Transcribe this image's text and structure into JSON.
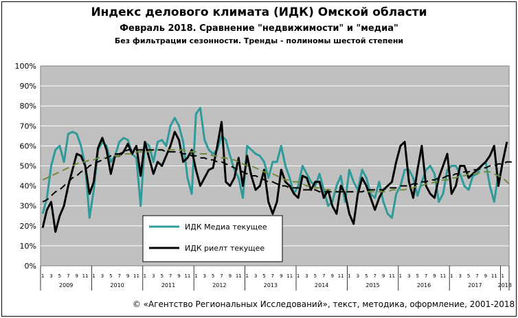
{
  "chart_data": {
    "type": "line",
    "title": "Индекс делового климата (ИДК) Омской области",
    "subtitle": "Февраль 2018. Сравнение \"недвижимости\"  и \"медиа\"",
    "note": "Без фильтрации  сезонности. Тренды  - полиномы  шестой степени",
    "credit": "© «Агентство Региональных Исследований», текст, методика, оформление, 2001-2018",
    "ylim": [
      0,
      100
    ],
    "y_ticks": [
      "0%",
      "10%",
      "20%",
      "30%",
      "40%",
      "50%",
      "60%",
      "70%",
      "80%",
      "90%",
      "100%"
    ],
    "grid": true,
    "plot_background": "#c0c0c0",
    "month_ticks": [
      "1",
      "3",
      "5",
      "7",
      "9",
      "11"
    ],
    "years": [
      "2009",
      "2010",
      "2011",
      "2012",
      "2013",
      "2014",
      "2015",
      "2016",
      "2017",
      "2018"
    ],
    "legend_position": "inside-bottom-left",
    "series": [
      {
        "name": "ИДК Медиа текущее",
        "color": "#2e9a9a",
        "values": [
          26,
          34,
          50,
          58,
          60,
          52,
          66,
          67,
          66,
          60,
          50,
          24,
          38,
          58,
          62,
          60,
          52,
          55,
          62,
          64,
          63,
          56,
          54,
          30,
          62,
          60,
          52,
          62,
          63,
          60,
          70,
          74,
          70,
          62,
          44,
          36,
          76,
          79,
          63,
          58,
          56,
          58,
          65,
          63,
          55,
          48,
          44,
          34,
          60,
          58,
          56,
          55,
          52,
          44,
          52,
          52,
          60,
          50,
          44,
          36,
          40,
          50,
          46,
          42,
          40,
          46,
          38,
          30,
          32,
          40,
          45,
          32,
          48,
          42,
          38,
          48,
          44,
          36,
          34,
          42,
          32,
          26,
          24,
          36,
          40,
          48,
          48,
          44,
          35,
          42,
          48,
          50,
          46,
          32,
          36,
          48,
          50,
          50,
          46,
          40,
          38,
          45,
          46,
          50,
          52,
          40,
          32,
          46
        ]
      },
      {
        "name": "ИДК риелт текущее",
        "color": "#000000",
        "values": [
          19,
          28,
          32,
          17,
          25,
          30,
          40,
          48,
          56,
          55,
          50,
          36,
          42,
          59,
          64,
          58,
          46,
          55,
          55,
          57,
          61,
          56,
          60,
          45,
          62,
          54,
          46,
          52,
          50,
          55,
          60,
          67,
          63,
          52,
          54,
          58,
          48,
          40,
          44,
          48,
          49,
          60,
          72,
          42,
          40,
          44,
          54,
          40,
          55,
          45,
          38,
          40,
          48,
          32,
          26,
          32,
          48,
          42,
          40,
          36,
          34,
          45,
          44,
          38,
          42,
          42,
          34,
          38,
          30,
          26,
          40,
          36,
          26,
          21,
          36,
          44,
          40,
          34,
          28,
          34,
          38,
          40,
          42,
          52,
          60,
          62,
          42,
          34,
          48,
          60,
          40,
          36,
          34,
          44,
          50,
          56,
          36,
          40,
          50,
          50,
          44,
          46,
          48,
          50,
          52,
          55,
          60,
          40,
          52,
          62
        ]
      },
      {
        "color": "#6e8b3d",
        "dashed": true,
        "values": [
          43,
          44,
          45,
          46,
          47,
          48,
          49,
          50,
          51,
          52,
          52,
          53,
          53,
          54,
          54,
          54,
          55,
          55,
          55,
          56,
          56,
          56,
          57,
          57,
          57,
          57,
          58,
          58,
          58,
          58,
          58,
          58,
          58,
          58,
          57,
          57,
          57,
          56,
          56,
          56,
          55,
          55,
          54,
          54,
          53,
          53,
          52,
          51,
          50,
          50,
          49,
          48,
          47,
          46,
          46,
          45,
          44,
          43,
          43,
          42,
          42,
          41,
          40,
          40,
          39,
          39,
          38,
          38,
          38,
          37,
          37,
          37,
          37,
          37,
          37,
          37,
          37,
          37,
          37,
          37,
          37,
          37,
          38,
          38,
          38,
          38,
          39,
          39,
          40,
          40,
          41,
          41,
          42,
          42,
          43,
          43,
          44,
          44,
          45,
          45,
          46,
          46,
          46,
          47,
          47,
          47,
          46,
          45,
          44,
          42,
          40
        ]
      },
      {
        "color": "#000000",
        "dashed": true,
        "values": [
          32,
          33,
          35,
          37,
          38,
          40,
          42,
          44,
          45,
          47,
          48,
          50,
          51,
          52,
          53,
          54,
          55,
          56,
          56,
          57,
          58,
          58,
          58,
          58,
          58,
          58,
          58,
          58,
          58,
          57,
          57,
          57,
          57,
          56,
          56,
          55,
          55,
          54,
          54,
          53,
          53,
          52,
          52,
          51,
          50,
          49,
          48,
          47,
          46,
          45,
          45,
          44,
          43,
          42,
          42,
          41,
          40,
          40,
          39,
          39,
          39,
          38,
          38,
          38,
          38,
          37,
          37,
          37,
          37,
          37,
          37,
          37,
          37,
          37,
          37,
          37,
          38,
          38,
          38,
          38,
          38,
          39,
          39,
          39,
          40,
          40,
          40,
          41,
          41,
          42,
          42,
          43,
          43,
          44,
          44,
          45,
          45,
          46,
          46,
          47,
          47,
          48,
          48,
          49,
          49,
          50,
          50,
          51,
          51,
          52,
          52,
          52
        ]
      }
    ]
  }
}
